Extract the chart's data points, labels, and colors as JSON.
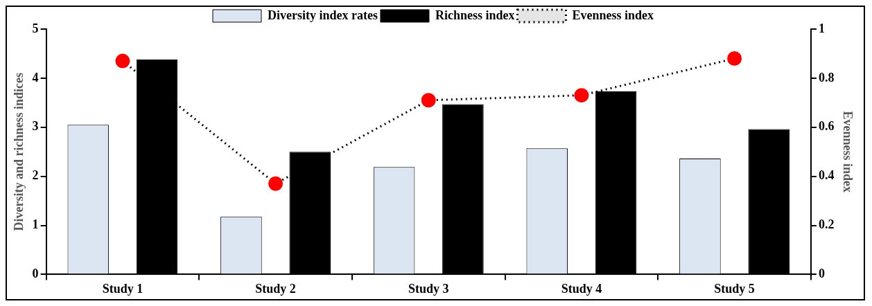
{
  "chart_data": {
    "type": "bar",
    "categories": [
      "Study 1",
      "Study 2",
      "Study 3",
      "Study 4",
      "Study 5"
    ],
    "ylabel": "Diversity and richness indices",
    "y2label": "Evenness index",
    "ylim": [
      0,
      5
    ],
    "yticks": [
      0,
      1,
      2,
      3,
      4,
      5
    ],
    "y2lim": [
      0,
      1
    ],
    "y2ticks": [
      0,
      0.2,
      0.4,
      0.6,
      0.8,
      1
    ],
    "grid": false,
    "legend": "top",
    "series": [
      {
        "name": "Diversity index rates",
        "color": "#dce6f2",
        "values": [
          3.05,
          1.18,
          2.19,
          2.57,
          2.36
        ]
      },
      {
        "name": "Richness index",
        "color": "#000000",
        "values": [
          4.38,
          2.5,
          3.47,
          3.73,
          2.96
        ]
      },
      {
        "name": "Evenness index",
        "type": "line",
        "axis": "y2",
        "color": "#ff0000",
        "marker": "circle",
        "line_style": "dotted",
        "values": [
          0.87,
          0.37,
          0.71,
          0.73,
          0.88
        ]
      }
    ]
  }
}
